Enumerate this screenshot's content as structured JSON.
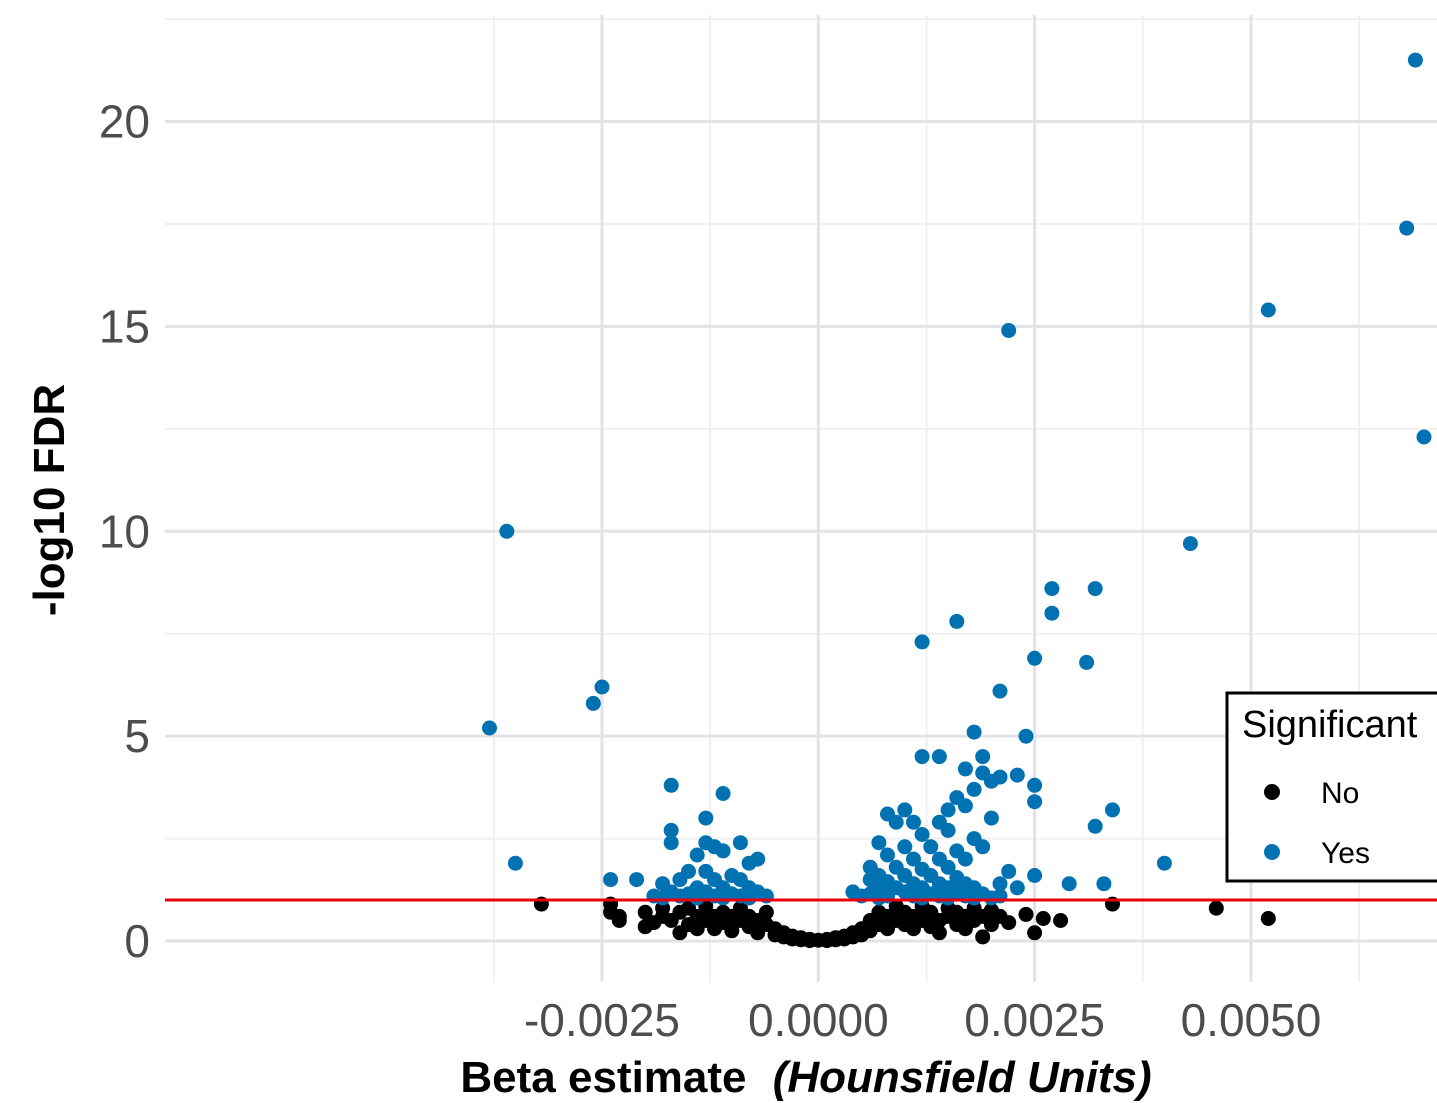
{
  "chart_data": {
    "type": "scatter",
    "xlabel": "Beta estimate",
    "xlabel_italic": "(Hounsfield Units)",
    "ylabel": "-log10 FDR",
    "xlim": [
      -0.00755,
      0.00715
    ],
    "ylim": [
      -1.0,
      22.6
    ],
    "x_ticks": [
      -0.0025,
      0.0,
      0.0025,
      0.005
    ],
    "x_tick_labels": [
      "-0.0025",
      "0.0000",
      "0.0025",
      "0.0050"
    ],
    "y_ticks": [
      0,
      5,
      10,
      15,
      20
    ],
    "y_tick_labels": [
      "0",
      "5",
      "10",
      "15",
      "20"
    ],
    "grid": true,
    "threshold_line": {
      "y": 1.0,
      "color": "#e8000b"
    },
    "legend": {
      "title": "Significant",
      "placement": "right",
      "entries": [
        {
          "label": "No",
          "color": "#000000"
        },
        {
          "label": "Yes",
          "color": "#0072b2"
        }
      ]
    },
    "series": [
      {
        "name": "Yes",
        "color": "#0072b2",
        "points": [
          [
            0.0069,
            21.5
          ],
          [
            0.0068,
            17.4
          ],
          [
            0.0052,
            15.4
          ],
          [
            0.0022,
            14.9
          ],
          [
            0.007,
            12.3
          ],
          [
            -0.0036,
            10.0
          ],
          [
            0.0043,
            9.7
          ],
          [
            0.0027,
            8.6
          ],
          [
            0.0032,
            8.6
          ],
          [
            0.0027,
            8.0
          ],
          [
            0.0016,
            7.8
          ],
          [
            0.0012,
            7.3
          ],
          [
            0.0025,
            6.9
          ],
          [
            0.0031,
            6.8
          ],
          [
            -0.0025,
            6.2
          ],
          [
            0.0021,
            6.1
          ],
          [
            -0.0026,
            5.8
          ],
          [
            -0.0038,
            5.2
          ],
          [
            0.0018,
            5.1
          ],
          [
            0.0024,
            5.0
          ],
          [
            0.0012,
            4.5
          ],
          [
            0.0014,
            4.5
          ],
          [
            0.0019,
            4.5
          ],
          [
            0.0017,
            4.2
          ],
          [
            0.0019,
            4.1
          ],
          [
            0.0021,
            4.0
          ],
          [
            0.0023,
            4.05
          ],
          [
            -0.0017,
            3.8
          ],
          [
            0.002,
            3.9
          ],
          [
            0.0025,
            3.8
          ],
          [
            0.0018,
            3.7
          ],
          [
            -0.0011,
            3.6
          ],
          [
            0.0016,
            3.5
          ],
          [
            0.0025,
            3.4
          ],
          [
            0.0034,
            3.2
          ],
          [
            0.0008,
            3.1
          ],
          [
            0.001,
            3.2
          ],
          [
            0.0015,
            3.2
          ],
          [
            0.0017,
            3.3
          ],
          [
            -0.0013,
            3.0
          ],
          [
            0.002,
            3.0
          ],
          [
            0.0009,
            2.9
          ],
          [
            0.0011,
            2.9
          ],
          [
            0.0014,
            2.9
          ],
          [
            0.0032,
            2.8
          ],
          [
            -0.0017,
            2.7
          ],
          [
            0.0012,
            2.6
          ],
          [
            0.0015,
            2.7
          ],
          [
            0.0018,
            2.5
          ],
          [
            -0.0013,
            2.4
          ],
          [
            -0.0012,
            2.3
          ],
          [
            -0.0009,
            2.4
          ],
          [
            0.0007,
            2.4
          ],
          [
            0.001,
            2.3
          ],
          [
            0.0013,
            2.3
          ],
          [
            0.0016,
            2.2
          ],
          [
            0.0019,
            2.3
          ],
          [
            -0.0017,
            2.4
          ],
          [
            -0.0014,
            2.1
          ],
          [
            -0.0011,
            2.2
          ],
          [
            0.0008,
            2.1
          ],
          [
            0.0011,
            2.0
          ],
          [
            0.0014,
            2.0
          ],
          [
            0.0017,
            2.0
          ],
          [
            -0.0035,
            1.9
          ],
          [
            -0.0008,
            1.9
          ],
          [
            -0.0007,
            2.0
          ],
          [
            0.004,
            1.9
          ],
          [
            0.0006,
            1.8
          ],
          [
            0.0009,
            1.8
          ],
          [
            0.0012,
            1.75
          ],
          [
            0.0015,
            1.8
          ],
          [
            0.0022,
            1.7
          ],
          [
            -0.0015,
            1.7
          ],
          [
            -0.0013,
            1.7
          ],
          [
            -0.001,
            1.6
          ],
          [
            0.0007,
            1.6
          ],
          [
            0.001,
            1.6
          ],
          [
            0.0013,
            1.6
          ],
          [
            0.0016,
            1.55
          ],
          [
            0.0025,
            1.6
          ],
          [
            -0.0016,
            1.5
          ],
          [
            -0.0012,
            1.5
          ],
          [
            -0.0009,
            1.5
          ],
          [
            -0.0024,
            1.5
          ],
          [
            -0.0021,
            1.5
          ],
          [
            0.0006,
            1.5
          ],
          [
            0.0008,
            1.45
          ],
          [
            0.0011,
            1.4
          ],
          [
            0.0014,
            1.4
          ],
          [
            0.0017,
            1.4
          ],
          [
            0.0021,
            1.4
          ],
          [
            0.0029,
            1.4
          ],
          [
            0.0033,
            1.4
          ],
          [
            -0.0018,
            1.4
          ],
          [
            -0.0014,
            1.3
          ],
          [
            -0.0011,
            1.3
          ],
          [
            -0.0008,
            1.3
          ],
          [
            0.0007,
            1.3
          ],
          [
            0.0009,
            1.3
          ],
          [
            0.0012,
            1.3
          ],
          [
            0.0015,
            1.3
          ],
          [
            0.0018,
            1.3
          ],
          [
            0.0023,
            1.3
          ],
          [
            -0.0017,
            1.2
          ],
          [
            -0.0015,
            1.15
          ],
          [
            -0.0013,
            1.2
          ],
          [
            -0.001,
            1.15
          ],
          [
            -0.0007,
            1.2
          ],
          [
            0.0004,
            1.2
          ],
          [
            0.0006,
            1.15
          ],
          [
            0.001,
            1.2
          ],
          [
            0.0013,
            1.15
          ],
          [
            0.0016,
            1.2
          ],
          [
            0.0019,
            1.15
          ],
          [
            0.0021,
            1.1
          ],
          [
            -0.0019,
            1.1
          ],
          [
            -0.0016,
            1.1
          ],
          [
            -0.0012,
            1.1
          ],
          [
            -0.0009,
            1.1
          ],
          [
            -0.0006,
            1.1
          ],
          [
            0.0005,
            1.1
          ],
          [
            0.0008,
            1.1
          ],
          [
            0.0011,
            1.1
          ],
          [
            0.0014,
            1.1
          ],
          [
            0.0017,
            1.1
          ],
          [
            0.002,
            1.05
          ],
          [
            -0.0018,
            1.05
          ],
          [
            -0.0014,
            1.05
          ],
          [
            -0.0011,
            1.05
          ],
          [
            -0.0008,
            1.05
          ],
          [
            0.0007,
            1.05
          ],
          [
            0.0012,
            1.05
          ],
          [
            0.0015,
            1.05
          ],
          [
            0.0018,
            1.05
          ]
        ]
      },
      {
        "name": "No",
        "color": "#000000",
        "points": [
          [
            -0.0032,
            0.9
          ],
          [
            -0.0024,
            0.9
          ],
          [
            -0.0024,
            0.7
          ],
          [
            -0.0023,
            0.5
          ],
          [
            -0.0023,
            0.6
          ],
          [
            -0.002,
            0.7
          ],
          [
            -0.002,
            0.35
          ],
          [
            -0.0019,
            0.45
          ],
          [
            -0.0018,
            0.6
          ],
          [
            -0.0018,
            0.8
          ],
          [
            -0.0017,
            0.5
          ],
          [
            -0.0016,
            0.7
          ],
          [
            -0.0016,
            0.2
          ],
          [
            -0.0015,
            0.4
          ],
          [
            -0.0015,
            0.8
          ],
          [
            -0.0014,
            0.6
          ],
          [
            -0.0014,
            0.3
          ],
          [
            -0.0013,
            0.5
          ],
          [
            -0.0013,
            0.85
          ],
          [
            -0.0012,
            0.6
          ],
          [
            -0.0012,
            0.3
          ],
          [
            -0.0011,
            0.7
          ],
          [
            -0.0011,
            0.45
          ],
          [
            -0.001,
            0.6
          ],
          [
            -0.001,
            0.25
          ],
          [
            -0.0009,
            0.5
          ],
          [
            -0.0009,
            0.8
          ],
          [
            -0.0008,
            0.35
          ],
          [
            -0.0008,
            0.6
          ],
          [
            -0.0007,
            0.5
          ],
          [
            -0.0007,
            0.2
          ],
          [
            -0.0006,
            0.4
          ],
          [
            -0.0006,
            0.7
          ],
          [
            -0.0005,
            0.3
          ],
          [
            -0.0005,
            0.15
          ],
          [
            -0.0004,
            0.2
          ],
          [
            -0.0004,
            0.1
          ],
          [
            -0.0003,
            0.12
          ],
          [
            -0.0003,
            0.05
          ],
          [
            -0.0002,
            0.08
          ],
          [
            -0.0002,
            0.03
          ],
          [
            -0.0001,
            0.04
          ],
          [
            -0.0001,
            0.01
          ],
          [
            0.0,
            0.02
          ],
          [
            0.0001,
            0.01
          ],
          [
            0.0001,
            0.04
          ],
          [
            0.0002,
            0.03
          ],
          [
            0.0002,
            0.08
          ],
          [
            0.0003,
            0.05
          ],
          [
            0.0003,
            0.12
          ],
          [
            0.0004,
            0.1
          ],
          [
            0.0004,
            0.2
          ],
          [
            0.0005,
            0.15
          ],
          [
            0.0005,
            0.3
          ],
          [
            0.0006,
            0.25
          ],
          [
            0.0006,
            0.5
          ],
          [
            0.0007,
            0.4
          ],
          [
            0.0007,
            0.7
          ],
          [
            0.0008,
            0.3
          ],
          [
            0.0008,
            0.6
          ],
          [
            0.0009,
            0.5
          ],
          [
            0.0009,
            0.85
          ],
          [
            0.001,
            0.4
          ],
          [
            0.001,
            0.7
          ],
          [
            0.0011,
            0.3
          ],
          [
            0.0011,
            0.6
          ],
          [
            0.0012,
            0.5
          ],
          [
            0.0012,
            0.85
          ],
          [
            0.0013,
            0.35
          ],
          [
            0.0013,
            0.7
          ],
          [
            0.0014,
            0.5
          ],
          [
            0.0014,
            0.2
          ],
          [
            0.0015,
            0.6
          ],
          [
            0.0015,
            0.8
          ],
          [
            0.0016,
            0.4
          ],
          [
            0.0016,
            0.7
          ],
          [
            0.0017,
            0.3
          ],
          [
            0.0017,
            0.6
          ],
          [
            0.0018,
            0.5
          ],
          [
            0.0018,
            0.8
          ],
          [
            0.0019,
            0.1
          ],
          [
            0.0019,
            0.6
          ],
          [
            0.002,
            0.4
          ],
          [
            0.002,
            0.75
          ],
          [
            0.0021,
            0.6
          ],
          [
            0.0022,
            0.45
          ],
          [
            0.0024,
            0.65
          ],
          [
            0.0025,
            0.2
          ],
          [
            0.0026,
            0.55
          ],
          [
            0.0028,
            0.5
          ],
          [
            0.0034,
            0.9
          ],
          [
            0.0046,
            0.8
          ],
          [
            0.0052,
            0.55
          ]
        ]
      }
    ]
  }
}
